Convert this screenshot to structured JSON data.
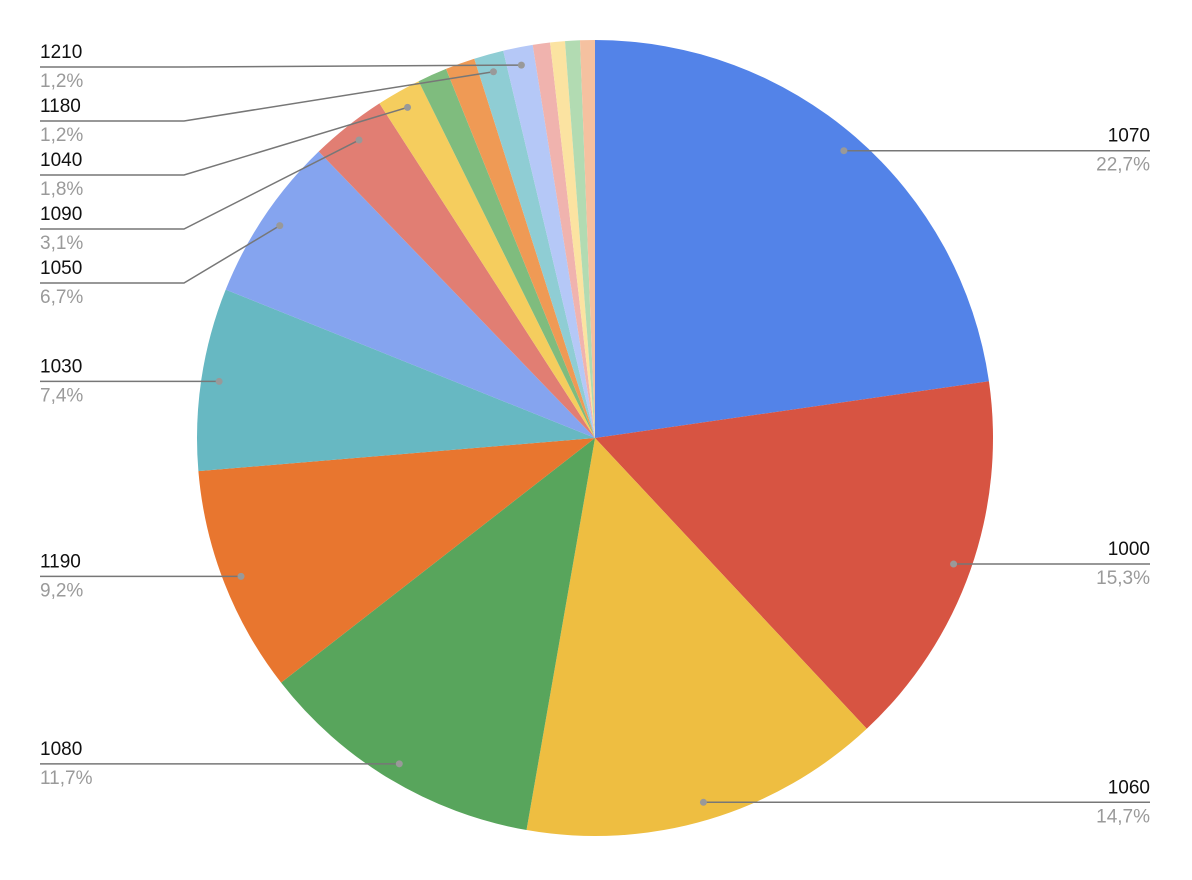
{
  "chart_data": {
    "type": "pie",
    "categories": [
      "1070",
      "1000",
      "1060",
      "1080",
      "1190",
      "1030",
      "1050",
      "1090",
      "1040",
      null,
      null,
      "1180",
      "1210",
      null,
      null,
      null,
      null
    ],
    "values": [
      22.7,
      15.3,
      14.7,
      11.7,
      9.2,
      7.4,
      6.7,
      3.1,
      1.8,
      1.2,
      1.2,
      1.2,
      1.2,
      0.7,
      0.6,
      0.6,
      0.6
    ],
    "value_labels": [
      "22,7%",
      "15,3%",
      "14,7%",
      "11,7%",
      "9,2%",
      "7,4%",
      "6,7%",
      "3,1%",
      "1,8%",
      null,
      null,
      "1,2%",
      "1,2%",
      null,
      null,
      null,
      null
    ],
    "colors": [
      "#5383e8",
      "#d75442",
      "#eebe41",
      "#58a55c",
      "#e8762f",
      "#67b8c2",
      "#85a4ef",
      "#e17e73",
      "#f5cd5e",
      "#7fbc7e",
      "#ef9a55",
      "#8fcdd4",
      "#b5c8f7",
      "#f0b3ae",
      "#fbe3a1",
      "#b2dbb2",
      "#f5c1a0"
    ]
  }
}
